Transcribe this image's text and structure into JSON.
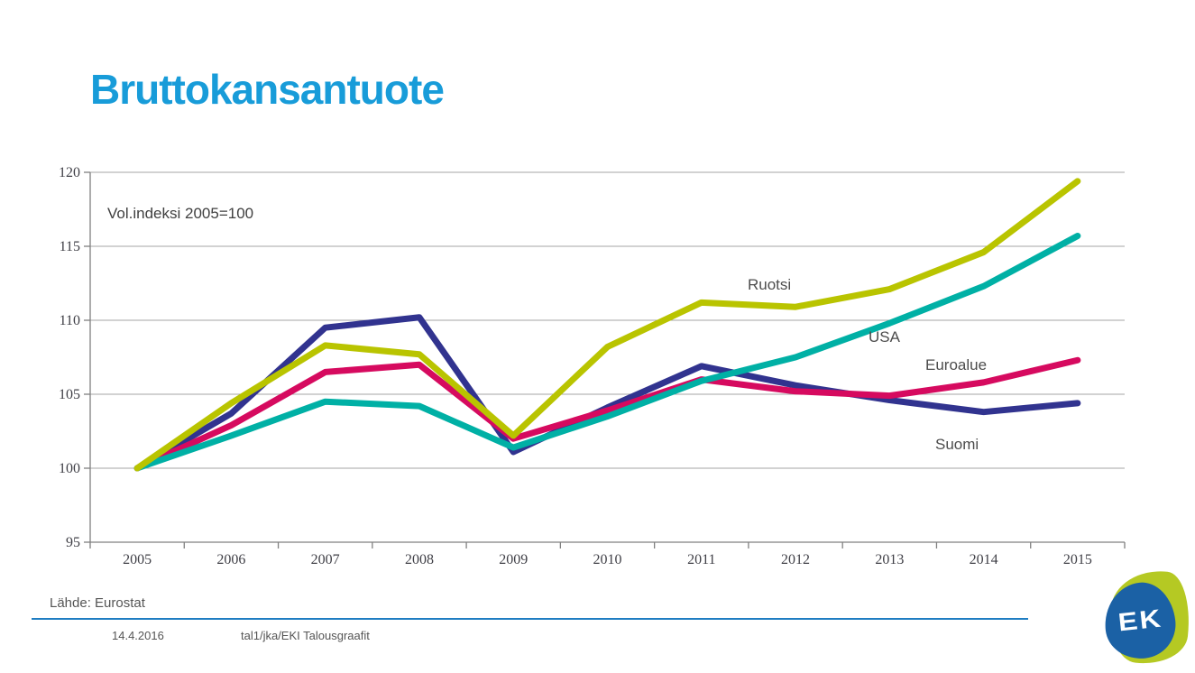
{
  "page": {
    "title": "Bruttokansantuote",
    "annotation": "Vol.indeksi 2005=100"
  },
  "footer": {
    "source": "Lähde: Eurostat",
    "date": "14.4.2016",
    "credit": "tal1/jka/EKI Talousgraafit"
  },
  "logo": {
    "text": "EK"
  },
  "colors": {
    "title": "#189cd9",
    "divider": "#1f7dc2",
    "grid": "#a6a6a6",
    "axis": "#808080",
    "tick_text": "#3f3f46",
    "label_text": "#4d4d4d",
    "logo_green": "#b5c923",
    "logo_blue": "#1b61a5"
  },
  "chart_data": {
    "type": "line",
    "title": "Bruttokansantuote",
    "note": "Vol.indeksi 2005=100",
    "x": [
      2005,
      2006,
      2007,
      2008,
      2009,
      2010,
      2011,
      2012,
      2013,
      2014,
      2015
    ],
    "series": [
      {
        "name": "Ruotsi",
        "color": "#b9c400",
        "values": [
          100,
          104.4,
          108.3,
          107.7,
          102.2,
          108.2,
          111.2,
          110.9,
          112.1,
          114.6,
          119.4
        ]
      },
      {
        "name": "USA",
        "color": "#00b0a5",
        "values": [
          100,
          102.2,
          104.5,
          104.2,
          101.4,
          103.5,
          105.9,
          107.5,
          109.8,
          112.3,
          115.7
        ]
      },
      {
        "name": "Euroalue",
        "color": "#d60a5f",
        "values": [
          100,
          102.9,
          106.5,
          107.0,
          102.0,
          103.9,
          106.0,
          105.2,
          104.9,
          105.8,
          107.3
        ]
      },
      {
        "name": "Suomi",
        "color": "#31338f",
        "values": [
          100,
          103.7,
          109.5,
          110.2,
          101.1,
          104.1,
          106.9,
          105.6,
          104.6,
          103.8,
          104.4
        ]
      }
    ],
    "ylim": [
      95,
      120
    ],
    "yticks": [
      95,
      100,
      105,
      110,
      115,
      120
    ],
    "xlabel": "",
    "ylabel": "",
    "grid": true,
    "legend_position": "inline-labels"
  }
}
